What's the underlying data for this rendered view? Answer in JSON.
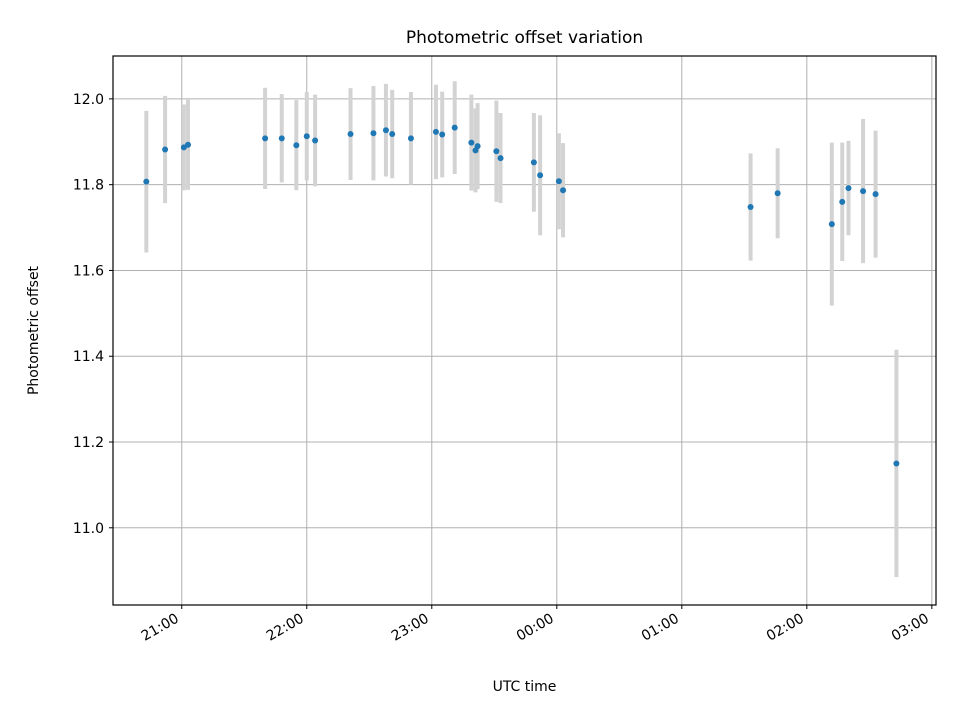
{
  "chart_data": {
    "type": "scatter",
    "title": "Photometric offset variation",
    "xlabel": "UTC time",
    "ylabel": "Photometric offset",
    "x_is_time": true,
    "xlim": [
      "20:27",
      "03:02"
    ],
    "ylim": [
      10.82,
      12.1
    ],
    "x_ticks": [
      "21:00",
      "22:00",
      "23:00",
      "00:00",
      "01:00",
      "02:00",
      "03:00"
    ],
    "y_ticks": [
      11.0,
      11.2,
      11.4,
      11.6,
      11.8,
      12.0
    ],
    "y_tick_labels": [
      "11.0",
      "11.2",
      "11.4",
      "11.6",
      "11.8",
      "12.0"
    ],
    "grid": true,
    "colors": {
      "point": "#1f77b4",
      "error_bar": "#d3d3d3"
    },
    "series": [
      {
        "points": [
          {
            "x": "20:43",
            "y": 11.807,
            "err": 0.165
          },
          {
            "x": "20:52",
            "y": 11.882,
            "err": 0.125
          },
          {
            "x": "21:01",
            "y": 11.887,
            "err": 0.1
          },
          {
            "x": "21:03",
            "y": 11.893,
            "err": 0.105
          },
          {
            "x": "21:40",
            "y": 11.908,
            "err": 0.118
          },
          {
            "x": "21:48",
            "y": 11.908,
            "err": 0.103
          },
          {
            "x": "21:55",
            "y": 11.892,
            "err": 0.105
          },
          {
            "x": "22:00",
            "y": 11.913,
            "err": 0.103
          },
          {
            "x": "22:04",
            "y": 11.903,
            "err": 0.107
          },
          {
            "x": "22:21",
            "y": 11.918,
            "err": 0.107
          },
          {
            "x": "22:32",
            "y": 11.92,
            "err": 0.11
          },
          {
            "x": "22:38",
            "y": 11.927,
            "err": 0.108
          },
          {
            "x": "22:41",
            "y": 11.918,
            "err": 0.103
          },
          {
            "x": "22:50",
            "y": 11.908,
            "err": 0.108
          },
          {
            "x": "23:02",
            "y": 11.923,
            "err": 0.11
          },
          {
            "x": "23:05",
            "y": 11.917,
            "err": 0.1
          },
          {
            "x": "23:11",
            "y": 11.933,
            "err": 0.108
          },
          {
            "x": "23:19",
            "y": 11.898,
            "err": 0.112
          },
          {
            "x": "23:21",
            "y": 11.88,
            "err": 0.098
          },
          {
            "x": "23:22",
            "y": 11.89,
            "err": 0.1
          },
          {
            "x": "23:31",
            "y": 11.878,
            "err": 0.118
          },
          {
            "x": "23:33",
            "y": 11.862,
            "err": 0.105
          },
          {
            "x": "23:49",
            "y": 11.852,
            "err": 0.115
          },
          {
            "x": "23:52",
            "y": 11.822,
            "err": 0.14
          },
          {
            "x": "00:01",
            "y": 11.808,
            "err": 0.112
          },
          {
            "x": "00:03",
            "y": 11.787,
            "err": 0.11
          },
          {
            "x": "01:33",
            "y": 11.748,
            "err": 0.125
          },
          {
            "x": "01:46",
            "y": 11.78,
            "err": 0.105
          },
          {
            "x": "02:12",
            "y": 11.708,
            "err": 0.19
          },
          {
            "x": "02:17",
            "y": 11.76,
            "err": 0.138
          },
          {
            "x": "02:20",
            "y": 11.792,
            "err": 0.11
          },
          {
            "x": "02:27",
            "y": 11.785,
            "err": 0.168
          },
          {
            "x": "02:33",
            "y": 11.778,
            "err": 0.148
          },
          {
            "x": "02:43",
            "y": 11.15,
            "err": 0.265
          }
        ]
      }
    ]
  }
}
